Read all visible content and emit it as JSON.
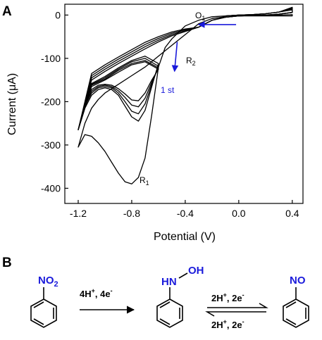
{
  "panel_a_label": "A",
  "panel_b_label": "B",
  "colors": {
    "curves": "#000000",
    "arrow": "#1a1adb",
    "heteroatom": "#1a1adb"
  },
  "chart_data": {
    "type": "line",
    "title": "",
    "xlabel": "Potential (V)",
    "ylabel": "Current (μA)",
    "xlim": [
      -1.3,
      0.48
    ],
    "ylim": [
      -435,
      25
    ],
    "x_ticks": [
      -1.2,
      -0.8,
      -0.4,
      0.0,
      0.4
    ],
    "x_tick_labels": [
      "-1.2",
      "-0.8",
      "-0.4",
      "0.0",
      "0.4"
    ],
    "y_ticks": [
      0,
      -100,
      -200,
      -300,
      -400
    ],
    "y_tick_labels": [
      "0",
      "-100",
      "-200",
      "-300",
      "-400"
    ],
    "grid": false,
    "legend": "none",
    "annotations": [
      {
        "text": "O",
        "sub": "1",
        "x": -0.3,
        "y": 16
      },
      {
        "text": "R",
        "sub": "2",
        "x": -0.18,
        "y": -85
      },
      {
        "text": "R",
        "sub": "1",
        "x": -0.88,
        "y": -380
      },
      {
        "text": "1 st",
        "x": -0.43,
        "y": -162
      }
    ],
    "arrows": [
      {
        "name": "scan-direction",
        "from": [
          -0.02,
          -22
        ],
        "to": [
          -0.3,
          -22
        ]
      },
      {
        "name": "cycle-order",
        "from": [
          -0.46,
          -62
        ],
        "to": [
          -0.48,
          -130
        ]
      }
    ],
    "series": [
      {
        "x": [
          -0.1,
          0.0,
          0.1,
          0.2,
          0.3,
          0.4,
          0.4,
          0.3,
          0.2,
          0.1,
          0.0,
          -0.1,
          -0.2,
          -0.3,
          -0.4,
          -0.5,
          -0.6,
          -0.7,
          -0.8,
          -0.9,
          -1.0,
          -1.1,
          -1.2,
          -1.2,
          -1.1,
          -1.0,
          -0.9,
          -0.8,
          -0.7,
          -0.6,
          -0.65,
          -0.7,
          -0.75,
          -0.8,
          -0.85,
          -0.9,
          -0.95,
          -1.0,
          -1.05,
          -1.1,
          -1.15,
          -1.2
        ],
        "y": [
          -2,
          0,
          1,
          3,
          7,
          12,
          6,
          2,
          0,
          -1,
          -2,
          -5,
          -12,
          -28,
          -38,
          -48,
          -62,
          -78,
          -95,
          -112,
          -130,
          -150,
          -265,
          -265,
          -158,
          -142,
          -122,
          -105,
          -95,
          -112,
          -165,
          -220,
          -245,
          -235,
          -210,
          -185,
          -172,
          -168,
          -172,
          -185,
          -215,
          -265
        ]
      },
      {
        "x": [
          -0.1,
          0.0,
          0.1,
          0.2,
          0.3,
          0.4,
          0.4,
          0.3,
          0.2,
          0.1,
          0.0,
          -0.1,
          -0.2,
          -0.3,
          -0.4,
          -0.5,
          -0.6,
          -0.7,
          -0.8,
          -0.9,
          -1.0,
          -1.1,
          -1.2,
          -1.2,
          -1.1,
          -1.0,
          -0.9,
          -0.8,
          -0.7,
          -0.6,
          -0.65,
          -0.7,
          -0.75,
          -0.8,
          -0.85,
          -0.9,
          -0.95,
          -1.0,
          -1.05,
          -1.1,
          -1.15,
          -1.2
        ],
        "y": [
          -2,
          0,
          1,
          3,
          7,
          14,
          6,
          2,
          0,
          -1,
          -2,
          -5,
          -12,
          -28,
          -36,
          -45,
          -58,
          -73,
          -90,
          -107,
          -125,
          -145,
          -265,
          -265,
          -160,
          -145,
          -125,
          -108,
          -100,
          -118,
          -160,
          -205,
          -228,
          -222,
          -200,
          -180,
          -168,
          -165,
          -168,
          -180,
          -210,
          -265
        ]
      },
      {
        "x": [
          -0.1,
          0.0,
          0.1,
          0.2,
          0.3,
          0.4,
          0.4,
          0.3,
          0.2,
          0.1,
          0.0,
          -0.1,
          -0.2,
          -0.3,
          -0.4,
          -0.5,
          -0.6,
          -0.7,
          -0.8,
          -0.9,
          -1.0,
          -1.1,
          -1.2,
          -1.2,
          -1.1,
          -1.0,
          -0.9,
          -0.8,
          -0.7,
          -0.6,
          -0.65,
          -0.7,
          -0.75,
          -0.8,
          -0.85,
          -0.9,
          -0.95,
          -1.0,
          -1.05,
          -1.1,
          -1.15,
          -1.2
        ],
        "y": [
          -2,
          0,
          1,
          3,
          7,
          16,
          6,
          2,
          0,
          -1,
          -2,
          -5,
          -12,
          -28,
          -34,
          -42,
          -54,
          -68,
          -85,
          -102,
          -120,
          -140,
          -265,
          -265,
          -162,
          -148,
          -128,
          -112,
          -105,
          -122,
          -155,
          -192,
          -212,
          -208,
          -190,
          -175,
          -165,
          -162,
          -165,
          -176,
          -205,
          -265
        ]
      },
      {
        "x": [
          -0.1,
          0.0,
          0.1,
          0.2,
          0.3,
          0.4,
          0.4,
          0.3,
          0.2,
          0.1,
          0.0,
          -0.1,
          -0.2,
          -0.3,
          -0.4,
          -0.5,
          -0.6,
          -0.7,
          -0.8,
          -0.9,
          -1.0,
          -1.1,
          -1.2,
          -1.2,
          -1.1,
          -1.0,
          -0.9,
          -0.8,
          -0.7,
          -0.6,
          -0.65,
          -0.7,
          -0.75,
          -0.8,
          -0.85,
          -0.9,
          -0.95,
          -1.0,
          -1.05,
          -1.1,
          -1.15,
          -1.2
        ],
        "y": [
          -2,
          0,
          1,
          3,
          7,
          18,
          6,
          2,
          0,
          -1,
          -2,
          -5,
          -12,
          -28,
          -32,
          -39,
          -50,
          -63,
          -80,
          -97,
          -115,
          -135,
          -265,
          -265,
          -165,
          -150,
          -132,
          -115,
          -108,
          -125,
          -150,
          -180,
          -198,
          -196,
          -182,
          -170,
          -162,
          -160,
          -162,
          -172,
          -200,
          -265
        ]
      },
      {
        "x": [
          -0.1,
          0.0,
          0.1,
          0.2,
          0.3,
          0.4,
          0.4,
          0.3,
          0.2,
          0.1,
          0.0,
          -0.1,
          -0.2,
          -0.3,
          -0.4,
          -0.5,
          -0.55,
          -0.6,
          -0.65,
          -0.7,
          -0.75,
          -0.8,
          -0.85,
          -0.9,
          -0.95,
          -1.0,
          -1.05,
          -1.1,
          -1.15,
          -1.2,
          -1.2,
          -1.15,
          -1.1,
          -1.05,
          -1.0,
          -0.9,
          -0.8,
          -0.7,
          -0.6,
          -0.5,
          -0.4,
          -0.3,
          -0.2,
          -0.1
        ],
        "y": [
          -2,
          -2,
          -2,
          -1,
          0,
          1,
          -2,
          -2,
          -2,
          -2,
          -2,
          -2,
          -4,
          -12,
          -25,
          -55,
          -75,
          -120,
          -230,
          -330,
          -375,
          -390,
          -385,
          -365,
          -340,
          -315,
          -295,
          -280,
          -276,
          -305,
          -305,
          -250,
          -215,
          -195,
          -180,
          -160,
          -140,
          -120,
          -95,
          -70,
          -45,
          -20,
          -8,
          -4
        ]
      }
    ]
  },
  "scheme": {
    "reactant": {
      "main": "NO",
      "sub": "2"
    },
    "arrow1": {
      "main": "4H",
      "sup1": "+",
      "rest": ", 4e",
      "sup2": "-"
    },
    "intermediate": {
      "left": "HN",
      "right": "OH"
    },
    "arrow_top": {
      "main": "2H",
      "sup1": "+",
      "rest": ", 2e",
      "sup2": "-"
    },
    "arrow_bottom": {
      "main": "2H",
      "sup1": "+",
      "rest": ", 2e",
      "sup2": "-"
    },
    "product": {
      "main": "NO"
    }
  }
}
